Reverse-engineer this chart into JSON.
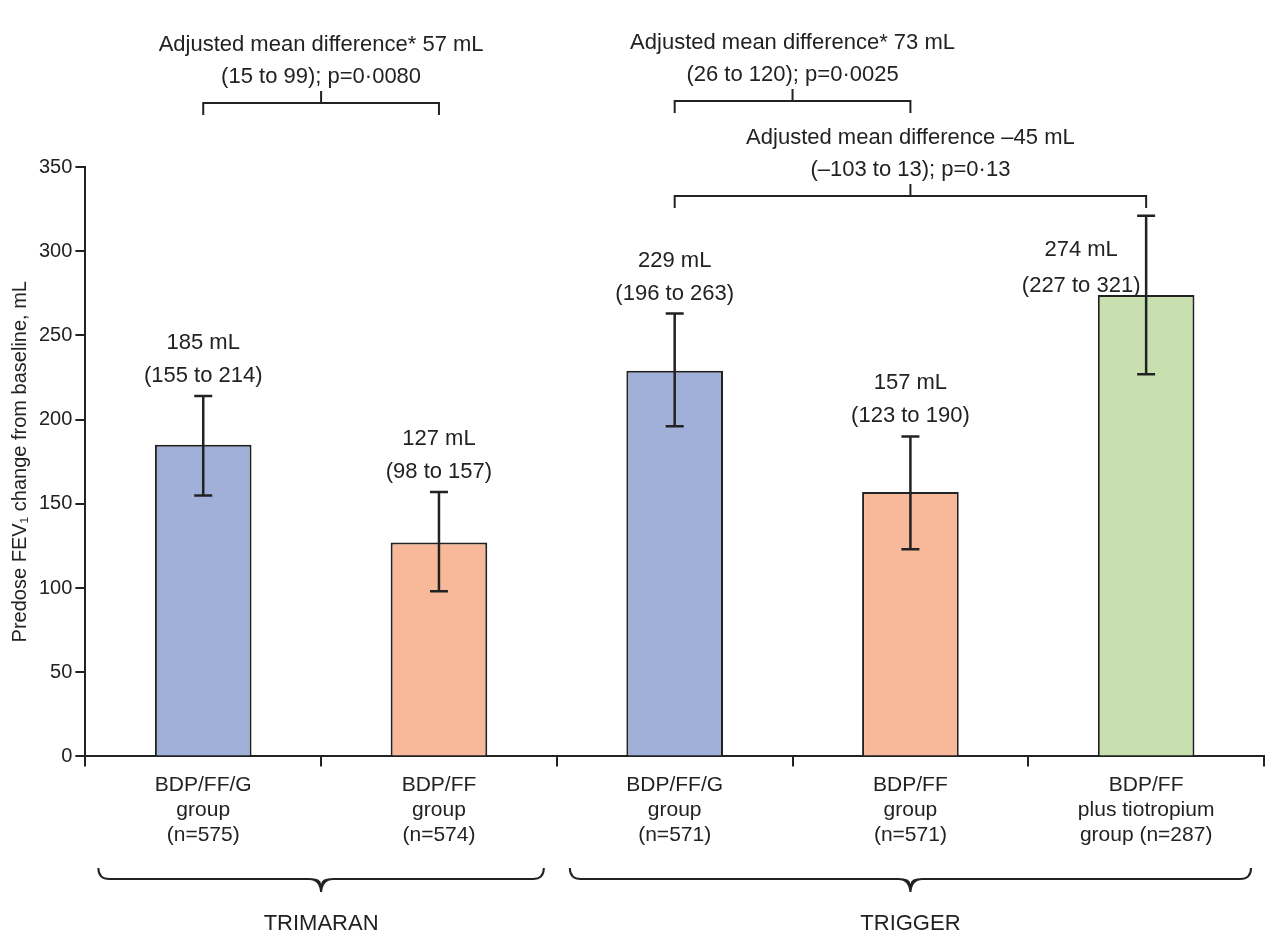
{
  "chart_data": {
    "type": "bar",
    "ylabel": "Predose FEV₁ change from baseline, mL",
    "categories": [
      "BDP/FF/G\ngroup\n(n=575)",
      "BDP/FF\ngroup\n(n=574)",
      "BDP/FF/G\ngroup\n(n=571)",
      "BDP/FF\ngroup\n(n=571)",
      "BDP/FF\nplus tiotropium\ngroup (n=287)"
    ],
    "values": [
      185,
      127,
      229,
      157,
      274
    ],
    "colors": [
      "#a0b0d8",
      "#f8b89a",
      "#a0b0d8",
      "#f8b89a",
      "#c8e0b0"
    ],
    "errors": [
      [
        155,
        214
      ],
      [
        98,
        157
      ],
      [
        196,
        263
      ],
      [
        123,
        190
      ],
      [
        227,
        321
      ]
    ],
    "value_labels": [
      "185 mL\n(155 to 214)",
      "127 mL\n(98 to 157)",
      "229 mL\n(196 to 263)",
      "157 mL\n(123 to 190)",
      "274 mL\n(227 to 321)"
    ],
    "annotations": [
      "Adjusted mean difference* 57 mL\n(15 to 99); p=0·0080",
      "Adjusted mean difference* 73 mL\n(26 to 120); p=0·0025",
      "Adjusted mean difference –45 mL\n(–103 to 13); p=0·13",
      "TRIMARAN",
      "TRIGGER"
    ],
    "ylim": [
      0,
      350
    ],
    "yticks": [
      0,
      50,
      100,
      150,
      200,
      250,
      300,
      350
    ],
    "grid": false,
    "legend": false
  }
}
